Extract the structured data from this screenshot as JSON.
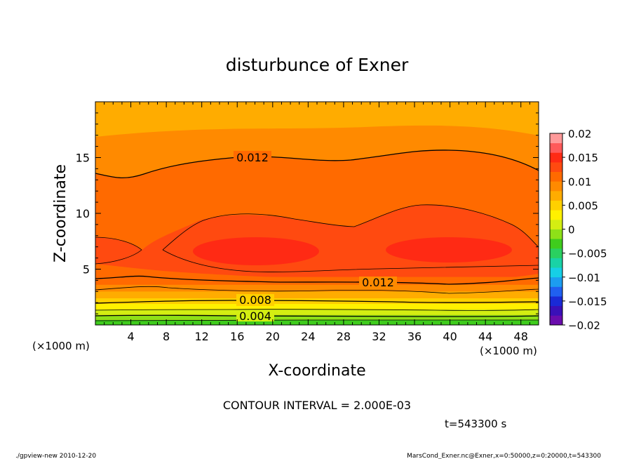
{
  "chart_data": {
    "type": "heatmap",
    "title": "disturbunce of Exner",
    "xlabel": "X-coordinate",
    "ylabel": "Z-coordinate",
    "x_unit": "(×1000 m)",
    "y_unit": "(×1000 m)",
    "xlim": [
      0,
      50
    ],
    "ylim": [
      0,
      20
    ],
    "x_ticks": [
      4,
      8,
      12,
      16,
      20,
      24,
      28,
      32,
      36,
      40,
      44,
      48
    ],
    "y_ticks": [
      5,
      10,
      15
    ],
    "contour_interval_text": "CONTOUR INTERVAL = 2.000E-03",
    "time_text": "t=543300 s",
    "contour_labels": [
      {
        "text": "0.012",
        "x": 18,
        "z": 15.1
      },
      {
        "text": "0.012",
        "x": 31,
        "z": 3.7
      },
      {
        "text": "0.008",
        "x": 18,
        "z": 2.2
      },
      {
        "text": "0.004",
        "x": 18,
        "z": 0.8
      }
    ],
    "colorbar": {
      "min": -0.02,
      "max": 0.02,
      "tick_labels": [
        "0.02",
        "0.015",
        "0.01",
        "0.005",
        "0",
        "−0.005",
        "−0.01",
        "−0.015",
        "−0.02"
      ],
      "colors": [
        "#6a0dad",
        "#3a10b8",
        "#1a2ad6",
        "#2060f0",
        "#1c9df0",
        "#16cfe6",
        "#19d2a6",
        "#2ad060",
        "#3fcc1d",
        "#8ee018",
        "#d4ee12",
        "#fff100",
        "#ffd000",
        "#ffac00",
        "#ff8a00",
        "#ff6a00",
        "#ff4a10",
        "#ff2a14",
        "#ff5a5a",
        "#ff9a9a"
      ]
    },
    "bands": [
      {
        "z_top": 0.45,
        "value": 0.001,
        "color": "#3fcc1d"
      },
      {
        "z_top": 0.9,
        "value": 0.003,
        "color": "#8ee018"
      },
      {
        "z_top": 1.4,
        "value": 0.004,
        "color": "#d4ee12"
      },
      {
        "z_top": 1.9,
        "value": 0.006,
        "color": "#fff100"
      },
      {
        "z_top": 2.4,
        "value": 0.007,
        "color": "#ffd000"
      },
      {
        "z_top": 3.0,
        "value": 0.009,
        "color": "#ffac00"
      },
      {
        "z_top": 3.6,
        "value": 0.01,
        "color": "#ff8a00"
      },
      {
        "z_top": 4.3,
        "value": 0.011,
        "color": "#ff6a00"
      }
    ]
  },
  "footer": {
    "left": "./gpview-new  2010-12-20",
    "right": "MarsCond_Exner.nc@Exner,x=0:50000,z=0:20000,t=543300"
  }
}
